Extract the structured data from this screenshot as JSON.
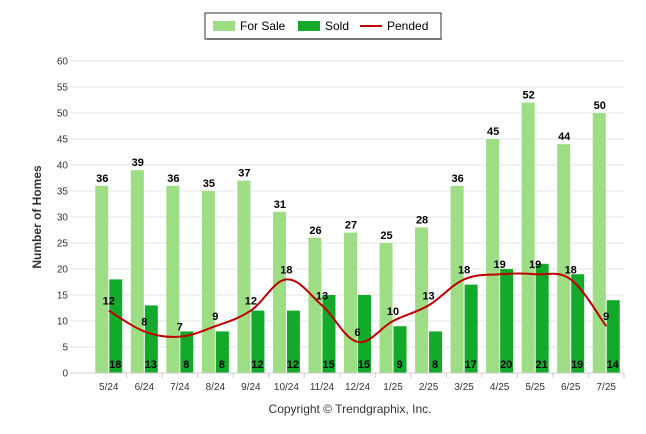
{
  "chart_data": {
    "type": "bar",
    "categories": [
      "5/24",
      "6/24",
      "7/24",
      "8/24",
      "9/24",
      "10/24",
      "11/24",
      "12/24",
      "1/25",
      "2/25",
      "3/25",
      "4/25",
      "5/25",
      "6/25",
      "7/25"
    ],
    "series": [
      {
        "name": "For Sale",
        "type": "bar",
        "color": "#9ddd84",
        "values": [
          36,
          39,
          36,
          35,
          37,
          31,
          26,
          27,
          25,
          28,
          36,
          45,
          52,
          44,
          50
        ]
      },
      {
        "name": "Sold",
        "type": "bar",
        "color": "#13a92b",
        "values": [
          18,
          13,
          8,
          8,
          12,
          12,
          15,
          15,
          9,
          8,
          17,
          20,
          21,
          19,
          14
        ]
      },
      {
        "name": "Pended",
        "type": "line",
        "color": "#c00000",
        "values": [
          12,
          8,
          7,
          9,
          12,
          18,
          13,
          6,
          10,
          13,
          18,
          19,
          19,
          18,
          9
        ]
      }
    ],
    "ylabel": "Number of Homes",
    "ylim": [
      0,
      60
    ],
    "yticks": [
      0,
      5,
      10,
      15,
      20,
      25,
      30,
      35,
      40,
      45,
      50,
      55,
      60
    ],
    "legend_position": "top-center",
    "grid": true,
    "credit": "Copyright © Trendgraphix, Inc."
  }
}
